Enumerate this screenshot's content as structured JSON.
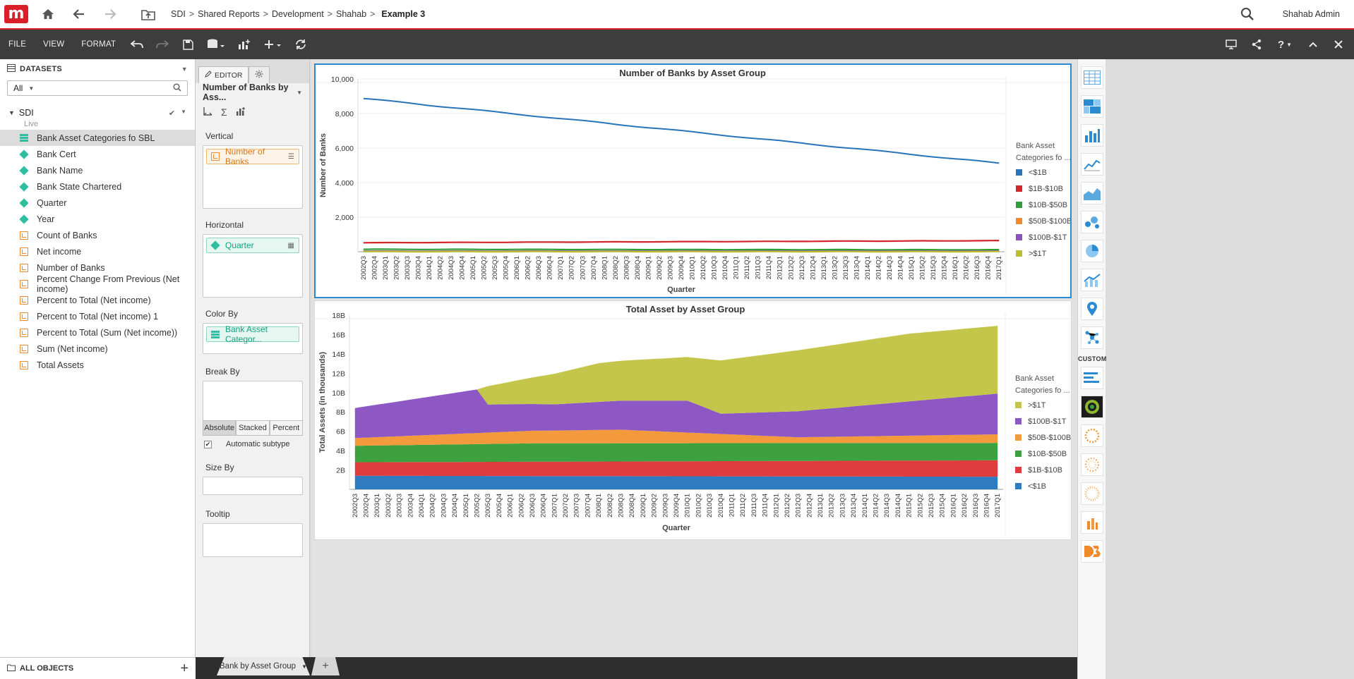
{
  "header": {
    "breadcrumb": [
      "SDI",
      "Shared Reports",
      "Development",
      "Shahab"
    ],
    "separator": ">",
    "current": "Example 3",
    "user": "Shahab Admin"
  },
  "toolbar": {
    "menus": [
      "FILE",
      "VIEW",
      "FORMAT"
    ]
  },
  "datasets": {
    "header": "DATASETS",
    "filter_value": "All",
    "source_name": "SDI",
    "source_status": "Live",
    "fields": [
      {
        "label": "Bank Asset Categories fo SBL",
        "type": "table",
        "selected": true
      },
      {
        "label": "Bank Cert",
        "type": "attribute"
      },
      {
        "label": "Bank Name",
        "type": "attribute"
      },
      {
        "label": "Bank State Chartered",
        "type": "attribute"
      },
      {
        "label": "Quarter",
        "type": "attribute"
      },
      {
        "label": "Year",
        "type": "attribute"
      },
      {
        "label": "Count of Banks",
        "type": "metric"
      },
      {
        "label": "Net income",
        "type": "metric"
      },
      {
        "label": "Number of Banks",
        "type": "metric"
      },
      {
        "label": "Percent Change From Previous (Net income)",
        "type": "metric"
      },
      {
        "label": "Percent to Total (Net income)",
        "type": "metric"
      },
      {
        "label": "Percent to Total (Net income) 1",
        "type": "metric"
      },
      {
        "label": "Percent to Total (Sum (Net income))",
        "type": "metric"
      },
      {
        "label": "Sum (Net income)",
        "type": "metric"
      },
      {
        "label": "Total Assets",
        "type": "metric"
      }
    ],
    "all_objects_label": "ALL OBJECTS"
  },
  "editor": {
    "tab_label": "EDITOR",
    "viz_title": "Number of Banks by Ass...",
    "vertical_label": "Vertical",
    "vertical_value": "Number of Banks",
    "horizontal_label": "Horizontal",
    "horizontal_value": "Quarter",
    "colorby_label": "Color By",
    "colorby_value": "Bank Asset Categor...",
    "breakby_label": "Break By",
    "modes": [
      "Absolute",
      "Stacked",
      "Percent"
    ],
    "active_mode": "Absolute",
    "auto_subtype_label": "Automatic subtype",
    "auto_subtype_checked": true,
    "sizeby_label": "Size By",
    "tooltip_label": "Tooltip"
  },
  "gallery": {
    "custom_label": "CUSTOM"
  },
  "pages": {
    "tab_label": "Bank by Asset Group",
    "add_label": "+"
  },
  "chart_data": [
    {
      "type": "line",
      "title": "Number of Banks by Asset Group",
      "xlabel": "Quarter",
      "ylabel": "Number of Banks",
      "ylim": [
        0,
        10000
      ],
      "yticks": [
        2000,
        4000,
        6000,
        8000,
        10000
      ],
      "ytick_labels": [
        "2,000",
        "4,000",
        "6,000",
        "8,000",
        "10,000"
      ],
      "grid": true,
      "legend_title": "Bank Asset Categories fo ...",
      "legend_position": "right",
      "x_start": "2002Q3",
      "x_end": "2017Q1",
      "series": [
        {
          "name": "<$1B",
          "color": "#2874b8",
          "start": 8870,
          "end": 5120
        },
        {
          "name": "$1B-$10B",
          "color": "#d3262b",
          "start": 520,
          "end": 640
        },
        {
          "name": "$10B-$50B",
          "color": "#2f9e3a",
          "start": 140,
          "end": 110
        },
        {
          "name": "$50B-$100B",
          "color": "#f08a2c",
          "start": 30,
          "end": 30
        },
        {
          "name": "$100B-$1T",
          "color": "#8b52c0",
          "start": 25,
          "end": 30
        },
        {
          "name": ">$1T",
          "color": "#b9bd2f",
          "start": 5,
          "end": 5
        }
      ]
    },
    {
      "type": "area",
      "title": "Total Asset by Asset Group",
      "xlabel": "Quarter",
      "ylabel": "Total Assets (in thousands)",
      "ylim": [
        0,
        18
      ],
      "yticks": [
        2,
        4,
        6,
        8,
        10,
        12,
        14,
        16,
        18
      ],
      "ytick_labels": [
        "2B",
        "4B",
        "6B",
        "8B",
        "10B",
        "12B",
        "14B",
        "16B",
        "18B"
      ],
      "stacked": true,
      "legend_title": "Bank Asset Categories fo ...",
      "legend_position": "right",
      "x_start": "2002Q3",
      "x_end": "2017Q1",
      "series": [
        {
          "name": "<$1B",
          "color": "#2e7bc0",
          "keypoints": [
            [
              0,
              1.4
            ],
            [
              59,
              1.3
            ]
          ]
        },
        {
          "name": "$1B-$10B",
          "color": "#df3c3f",
          "keypoints": [
            [
              0,
              1.4
            ],
            [
              59,
              1.7
            ]
          ]
        },
        {
          "name": "$10B-$50B",
          "color": "#3ea13f",
          "keypoints": [
            [
              0,
              1.7
            ],
            [
              16,
              1.9
            ],
            [
              59,
              1.8
            ]
          ]
        },
        {
          "name": "$50B-$100B",
          "color": "#f39a3c",
          "keypoints": [
            [
              0,
              0.8
            ],
            [
              16,
              1.3
            ],
            [
              24,
              1.4
            ],
            [
              40,
              0.6
            ],
            [
              59,
              0.9
            ]
          ]
        },
        {
          "name": "$100B-$1T",
          "color": "#8e58c4",
          "keypoints": [
            [
              0,
              3.1
            ],
            [
              11,
              4.5
            ],
            [
              12,
              2.9
            ],
            [
              18,
              2.7
            ],
            [
              30,
              3.3
            ],
            [
              33,
              2.1
            ],
            [
              59,
              4.3
            ]
          ]
        },
        {
          "name": ">$1T",
          "color": "#c3c64b",
          "keypoints": [
            [
              0,
              0
            ],
            [
              11,
              0
            ],
            [
              12,
              1.9
            ],
            [
              22,
              4.0
            ],
            [
              30,
              4.5
            ],
            [
              33,
              5.5
            ],
            [
              40,
              6.3
            ],
            [
              50,
              7.0
            ],
            [
              59,
              7.0
            ]
          ]
        }
      ]
    }
  ]
}
